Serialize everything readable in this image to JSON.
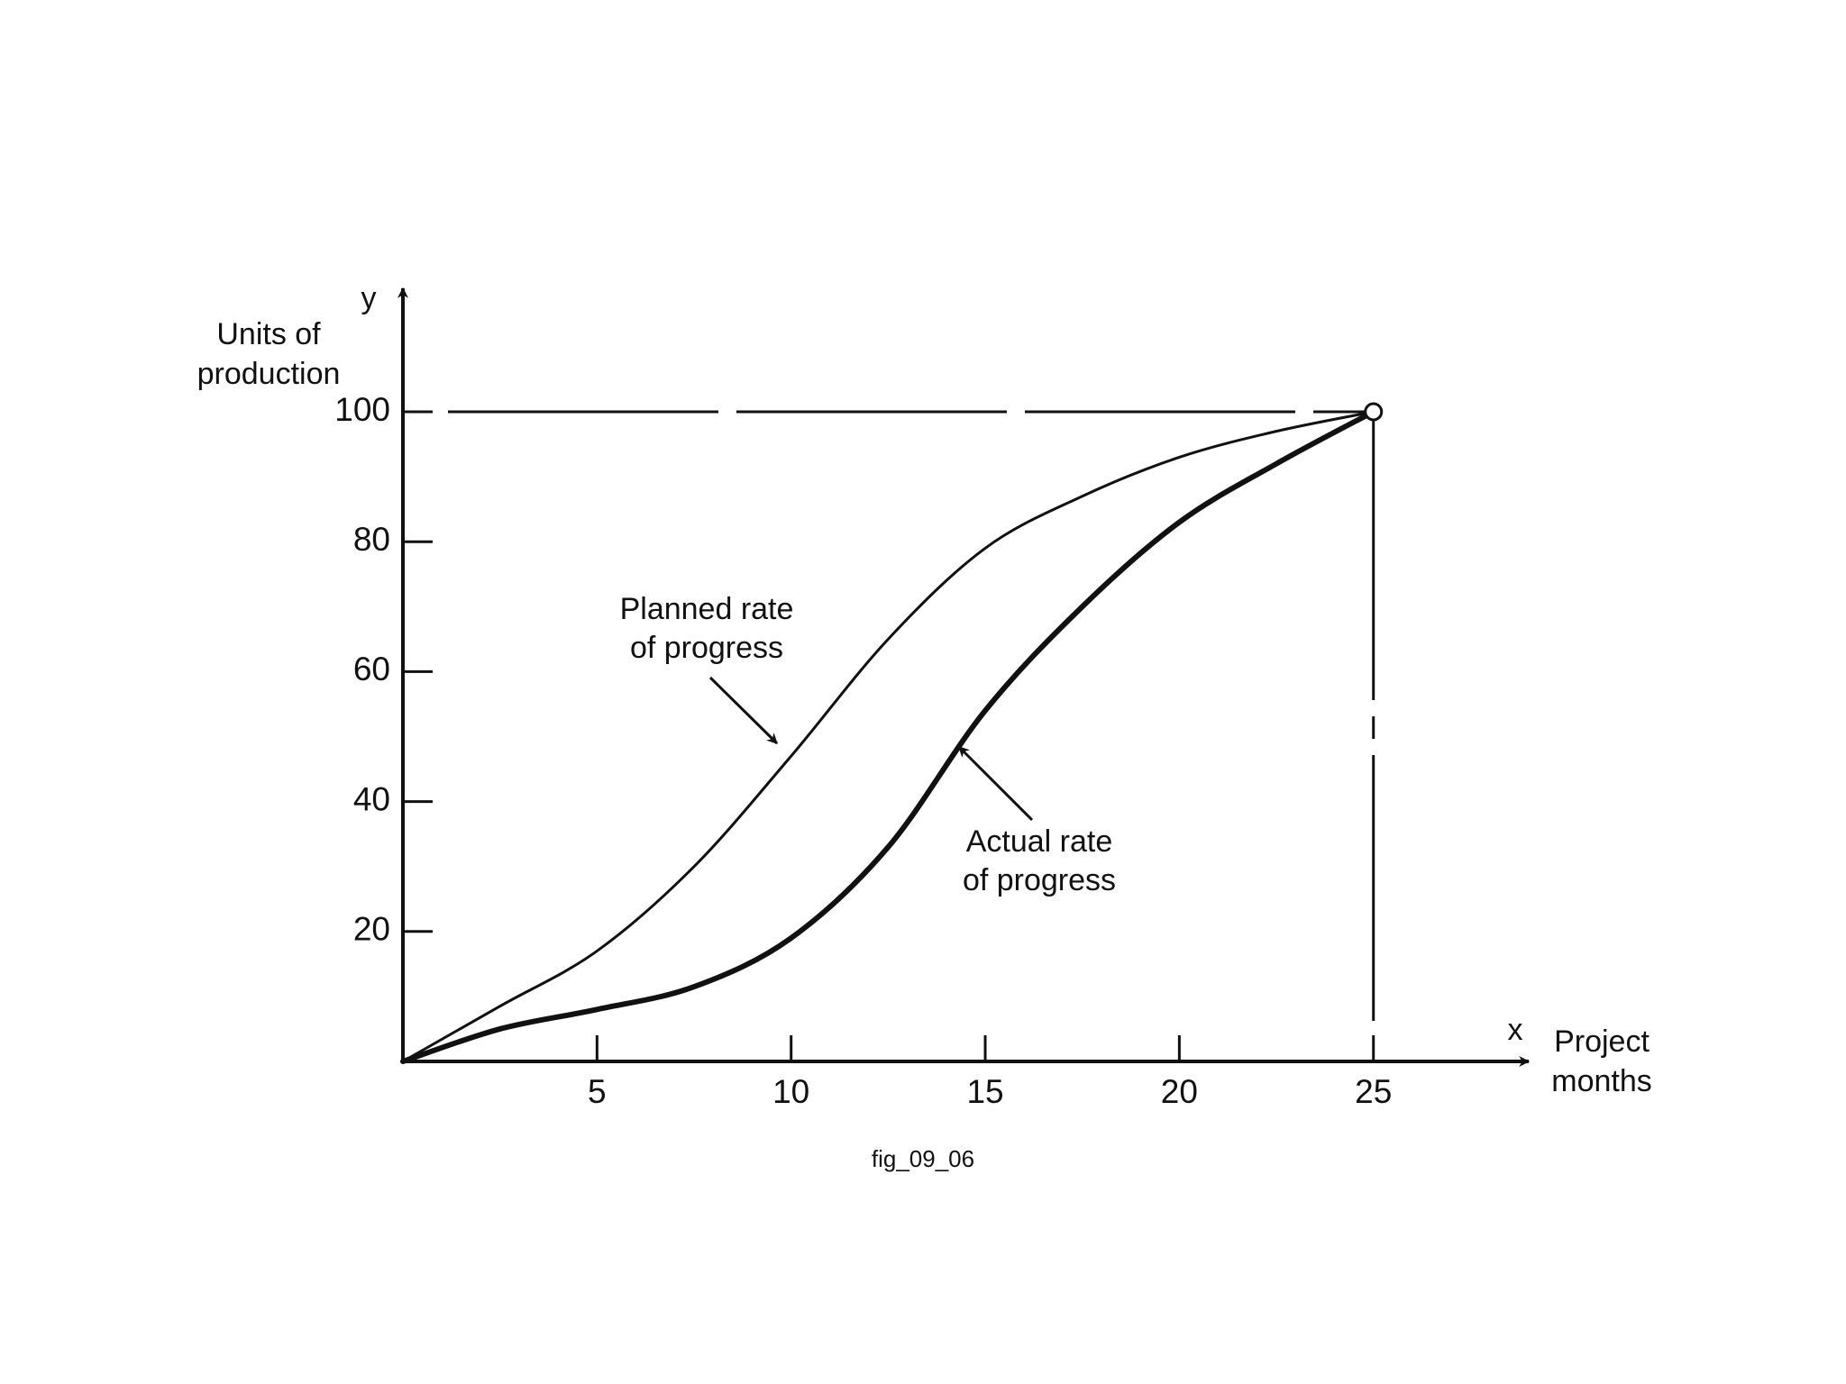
{
  "chart_data": {
    "type": "line",
    "y_label": [
      "Units of",
      "production"
    ],
    "y_axis_symbol": "y",
    "x_axis_symbol": "x",
    "x_label": [
      "Project",
      "months"
    ],
    "caption": "fig_09_06",
    "x": [
      0,
      2.5,
      5,
      7.5,
      10,
      12.5,
      15,
      17.5,
      20,
      22.5,
      25
    ],
    "series": [
      {
        "name": [
          "Planned rate",
          "of progress"
        ],
        "color": "#111111",
        "values": [
          0,
          8.5,
          17,
          30,
          47,
          65,
          79,
          87,
          93,
          97,
          100
        ]
      },
      {
        "name": [
          "Actual rate",
          "of progress"
        ],
        "color": "#111111",
        "values": [
          0,
          5,
          8,
          11.5,
          19,
          33,
          54,
          70,
          83,
          92,
          100
        ]
      }
    ],
    "xlim": [
      0,
      29
    ],
    "ylim": [
      0,
      119
    ],
    "xticks": [
      5,
      10,
      15,
      20,
      25
    ],
    "yticks": [
      20,
      40,
      60,
      80,
      100
    ],
    "grid": false
  }
}
